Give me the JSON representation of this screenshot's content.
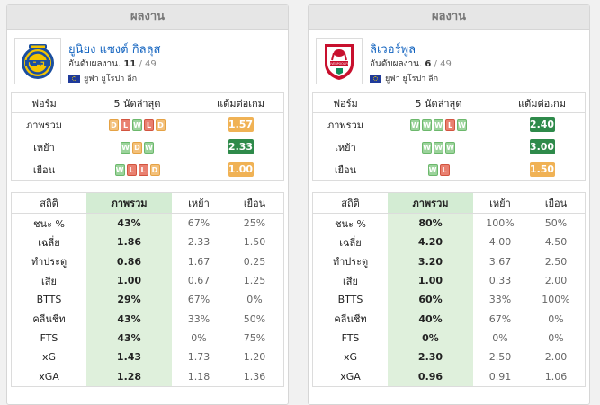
{
  "left": {
    "header": "ผลงาน",
    "team_name": "ยูนิยง แซงต์ กิลลุส",
    "rank_label": "อันดับผลงาน.",
    "rank": "11",
    "rank_total": "/ 49",
    "competition": "ยูฟ่า ยูโรปา ลีก",
    "logo_icon": "union-sg-crest-icon",
    "form_headers": [
      "ฟอร์ม",
      "5 นัดล่าสุด",
      "แต้มต่อเกม"
    ],
    "form_rows": [
      {
        "label": "ภาพรวม",
        "results": [
          "D",
          "L",
          "W",
          "L",
          "D"
        ],
        "ppg": "1.57",
        "ppg_color": "orange"
      },
      {
        "label": "เหย้า",
        "results": [
          "W",
          "D",
          "W"
        ],
        "ppg": "2.33",
        "ppg_color": "green"
      },
      {
        "label": "เยือน",
        "results": [
          "W",
          "L",
          "L",
          "D"
        ],
        "ppg": "1.00",
        "ppg_color": "orange"
      }
    ],
    "stats_headers": [
      "สถิติ",
      "ภาพรวม",
      "เหย้า",
      "เยือน"
    ],
    "stats_rows": [
      {
        "label": "ชนะ %",
        "overall": "43%",
        "home": "67%",
        "away": "25%"
      },
      {
        "label": "เฉลี่ย",
        "overall": "1.86",
        "home": "2.33",
        "away": "1.50"
      },
      {
        "label": "ทำประตู",
        "overall": "0.86",
        "home": "1.67",
        "away": "0.25"
      },
      {
        "label": "เสีย",
        "overall": "1.00",
        "home": "0.67",
        "away": "1.25"
      },
      {
        "label": "BTTS",
        "overall": "29%",
        "home": "67%",
        "away": "0%"
      },
      {
        "label": "คลีนชีท",
        "overall": "43%",
        "home": "33%",
        "away": "50%"
      },
      {
        "label": "FTS",
        "overall": "43%",
        "home": "0%",
        "away": "75%"
      },
      {
        "label": "xG",
        "overall": "1.43",
        "home": "1.73",
        "away": "1.20"
      },
      {
        "label": "xGA",
        "overall": "1.28",
        "home": "1.18",
        "away": "1.36"
      }
    ]
  },
  "right": {
    "header": "ผลงาน",
    "team_name": "ลิเวอร์พูล",
    "rank_label": "อันดับผลงาน.",
    "rank": "6",
    "rank_total": "/ 49",
    "competition": "ยูฟ่า ยูโรปา ลีก",
    "logo_icon": "liverpool-crest-icon",
    "logo_text": "LIVERPOOL FC",
    "form_headers": [
      "ฟอร์ม",
      "5 นัดล่าสุด",
      "แต้มต่อเกม"
    ],
    "form_rows": [
      {
        "label": "ภาพรวม",
        "results": [
          "W",
          "W",
          "W",
          "L",
          "W"
        ],
        "ppg": "2.40",
        "ppg_color": "green"
      },
      {
        "label": "เหย้า",
        "results": [
          "W",
          "W",
          "W"
        ],
        "ppg": "3.00",
        "ppg_color": "green"
      },
      {
        "label": "เยือน",
        "results": [
          "W",
          "L"
        ],
        "ppg": "1.50",
        "ppg_color": "orange"
      }
    ],
    "stats_headers": [
      "สถิติ",
      "ภาพรวม",
      "เหย้า",
      "เยือน"
    ],
    "stats_rows": [
      {
        "label": "ชนะ %",
        "overall": "80%",
        "home": "100%",
        "away": "50%"
      },
      {
        "label": "เฉลี่ย",
        "overall": "4.20",
        "home": "4.00",
        "away": "4.50"
      },
      {
        "label": "ทำประตู",
        "overall": "3.20",
        "home": "3.67",
        "away": "2.50"
      },
      {
        "label": "เสีย",
        "overall": "1.00",
        "home": "0.33",
        "away": "2.00"
      },
      {
        "label": "BTTS",
        "overall": "60%",
        "home": "33%",
        "away": "100%"
      },
      {
        "label": "คลีนชีท",
        "overall": "40%",
        "home": "67%",
        "away": "0%"
      },
      {
        "label": "FTS",
        "overall": "0%",
        "home": "0%",
        "away": "0%"
      },
      {
        "label": "xG",
        "overall": "2.30",
        "home": "2.50",
        "away": "2.00"
      },
      {
        "label": "xGA",
        "overall": "0.96",
        "home": "0.91",
        "away": "1.06"
      }
    ]
  },
  "colors": {
    "ppg_green": "#2e8a4a",
    "ppg_orange": "#f0b255",
    "win": "#9bd39b",
    "draw": "#f3c07a",
    "loss": "#e98070",
    "overall_col": "#dff0dc",
    "team_link": "#1565c0"
  }
}
